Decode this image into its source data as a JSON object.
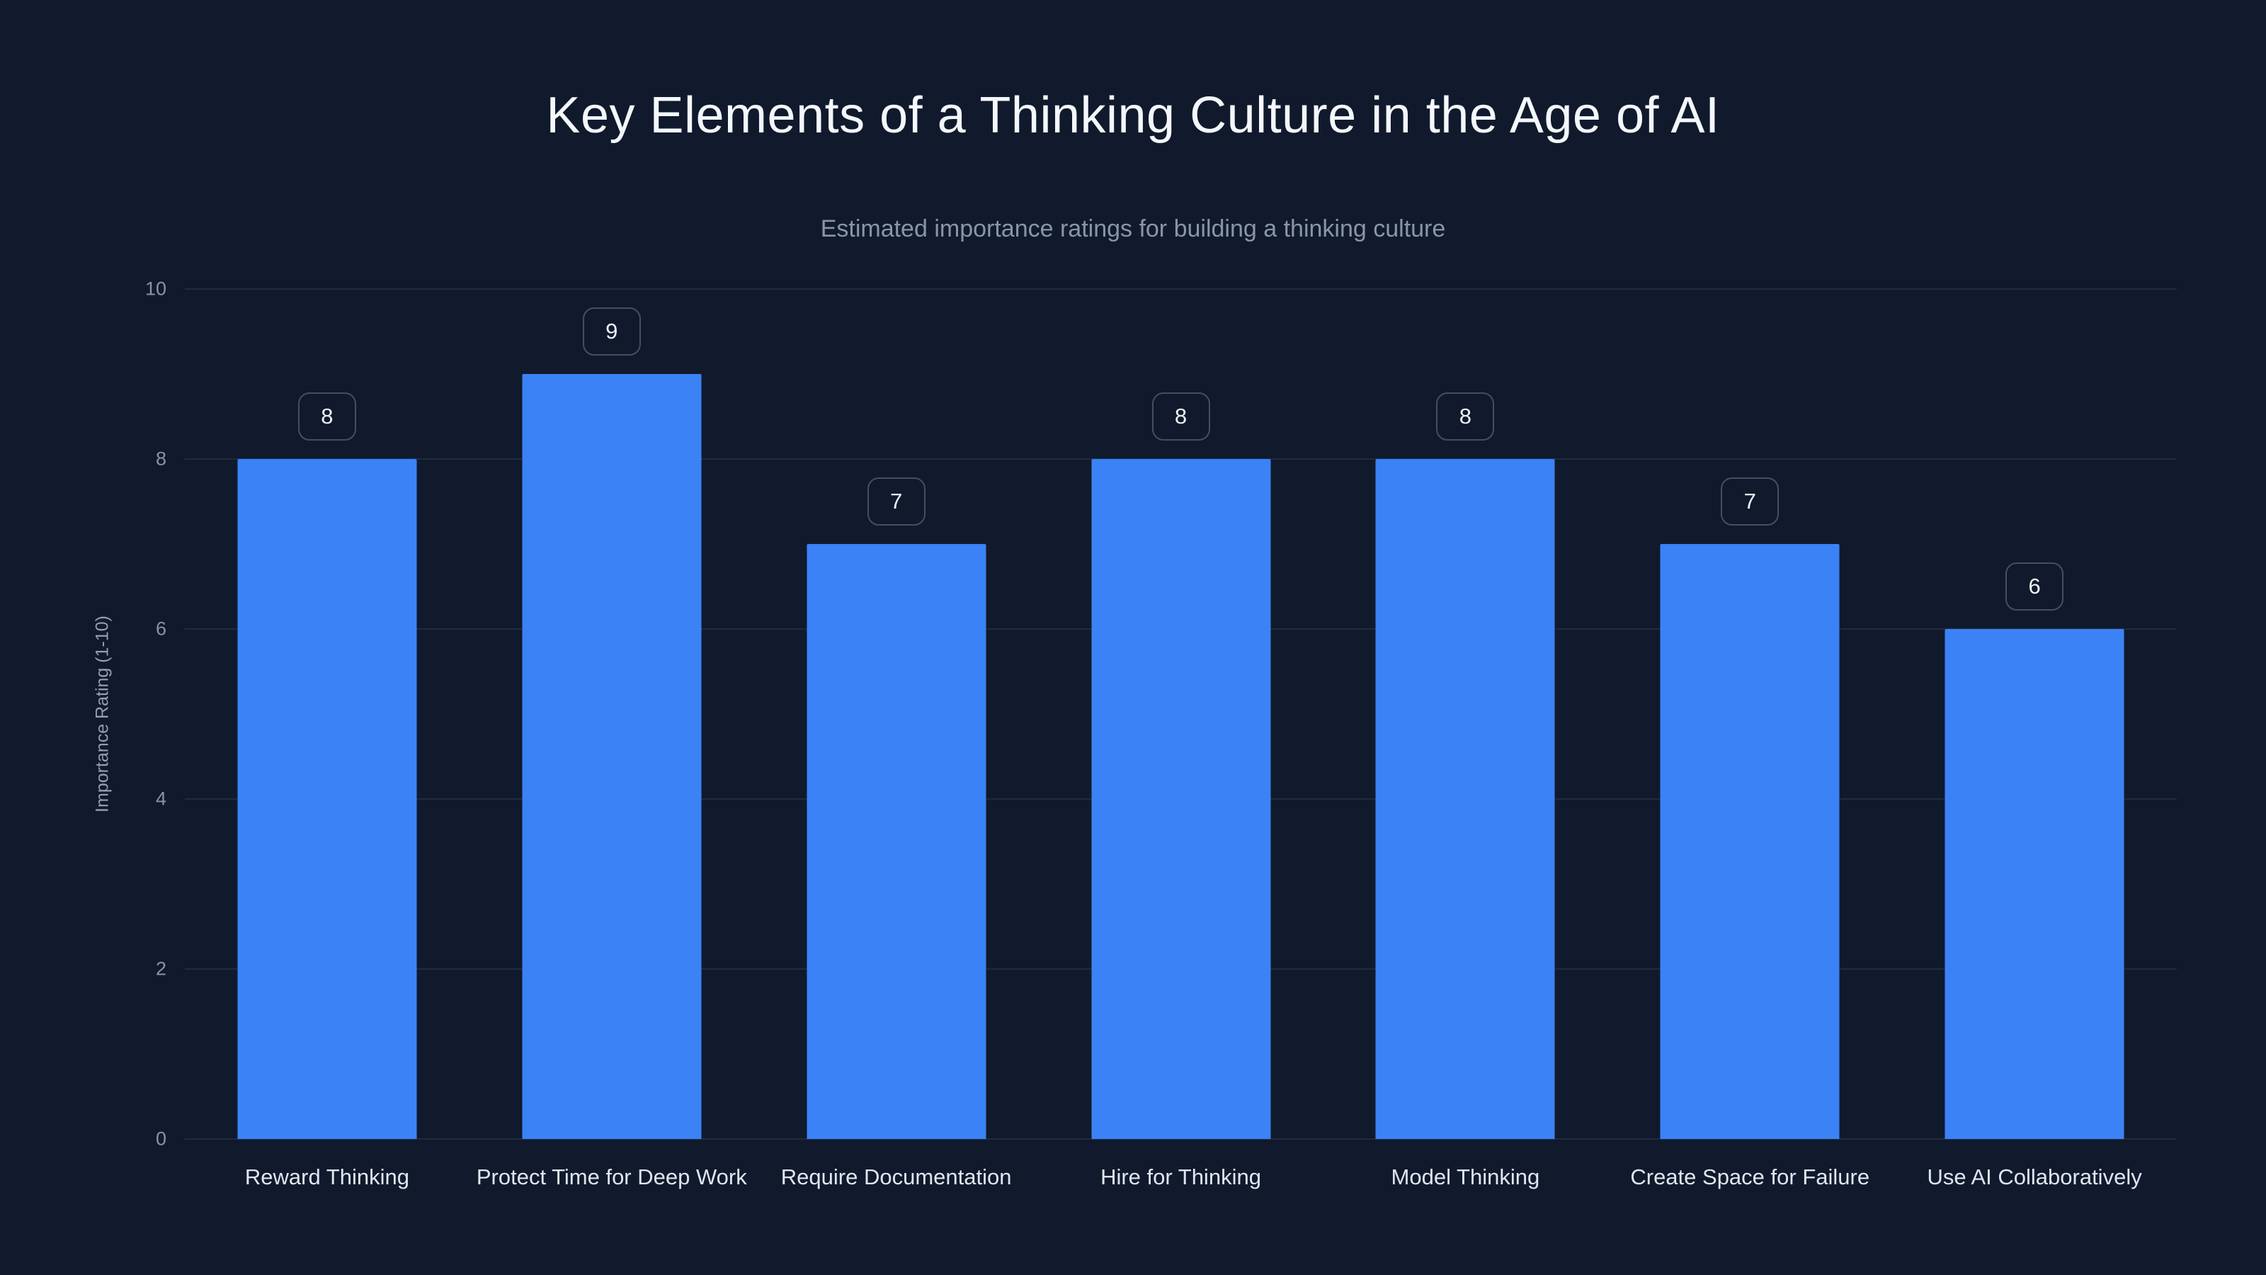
{
  "page": {
    "background_color": "#101a2c"
  },
  "chart_data": {
    "type": "bar",
    "title": "Key Elements of a Thinking Culture in the Age of AI",
    "subtitle": "Estimated importance ratings for building a thinking culture",
    "categories": [
      "Reward Thinking",
      "Protect Time for Deep Work",
      "Require Documentation",
      "Hire for Thinking",
      "Model Thinking",
      "Create Space for Failure",
      "Use AI Collaboratively"
    ],
    "values": [
      8,
      9,
      7,
      8,
      8,
      7,
      6
    ],
    "value_labels": [
      "8",
      "9",
      "7",
      "8",
      "8",
      "7",
      "6"
    ],
    "xlabel": "",
    "ylabel": "Importance Rating (1-10)",
    "ylim": [
      0,
      10
    ],
    "yticks": [
      0,
      2,
      4,
      6,
      8,
      10
    ],
    "grid": true,
    "legend": false,
    "bar_color": "#3b82f6",
    "grid_color": "rgba(148,163,184,0.13)",
    "badge_border_color": "#434f63",
    "text_color": "#f4f7fb",
    "muted_text_color": "#8896ab"
  }
}
